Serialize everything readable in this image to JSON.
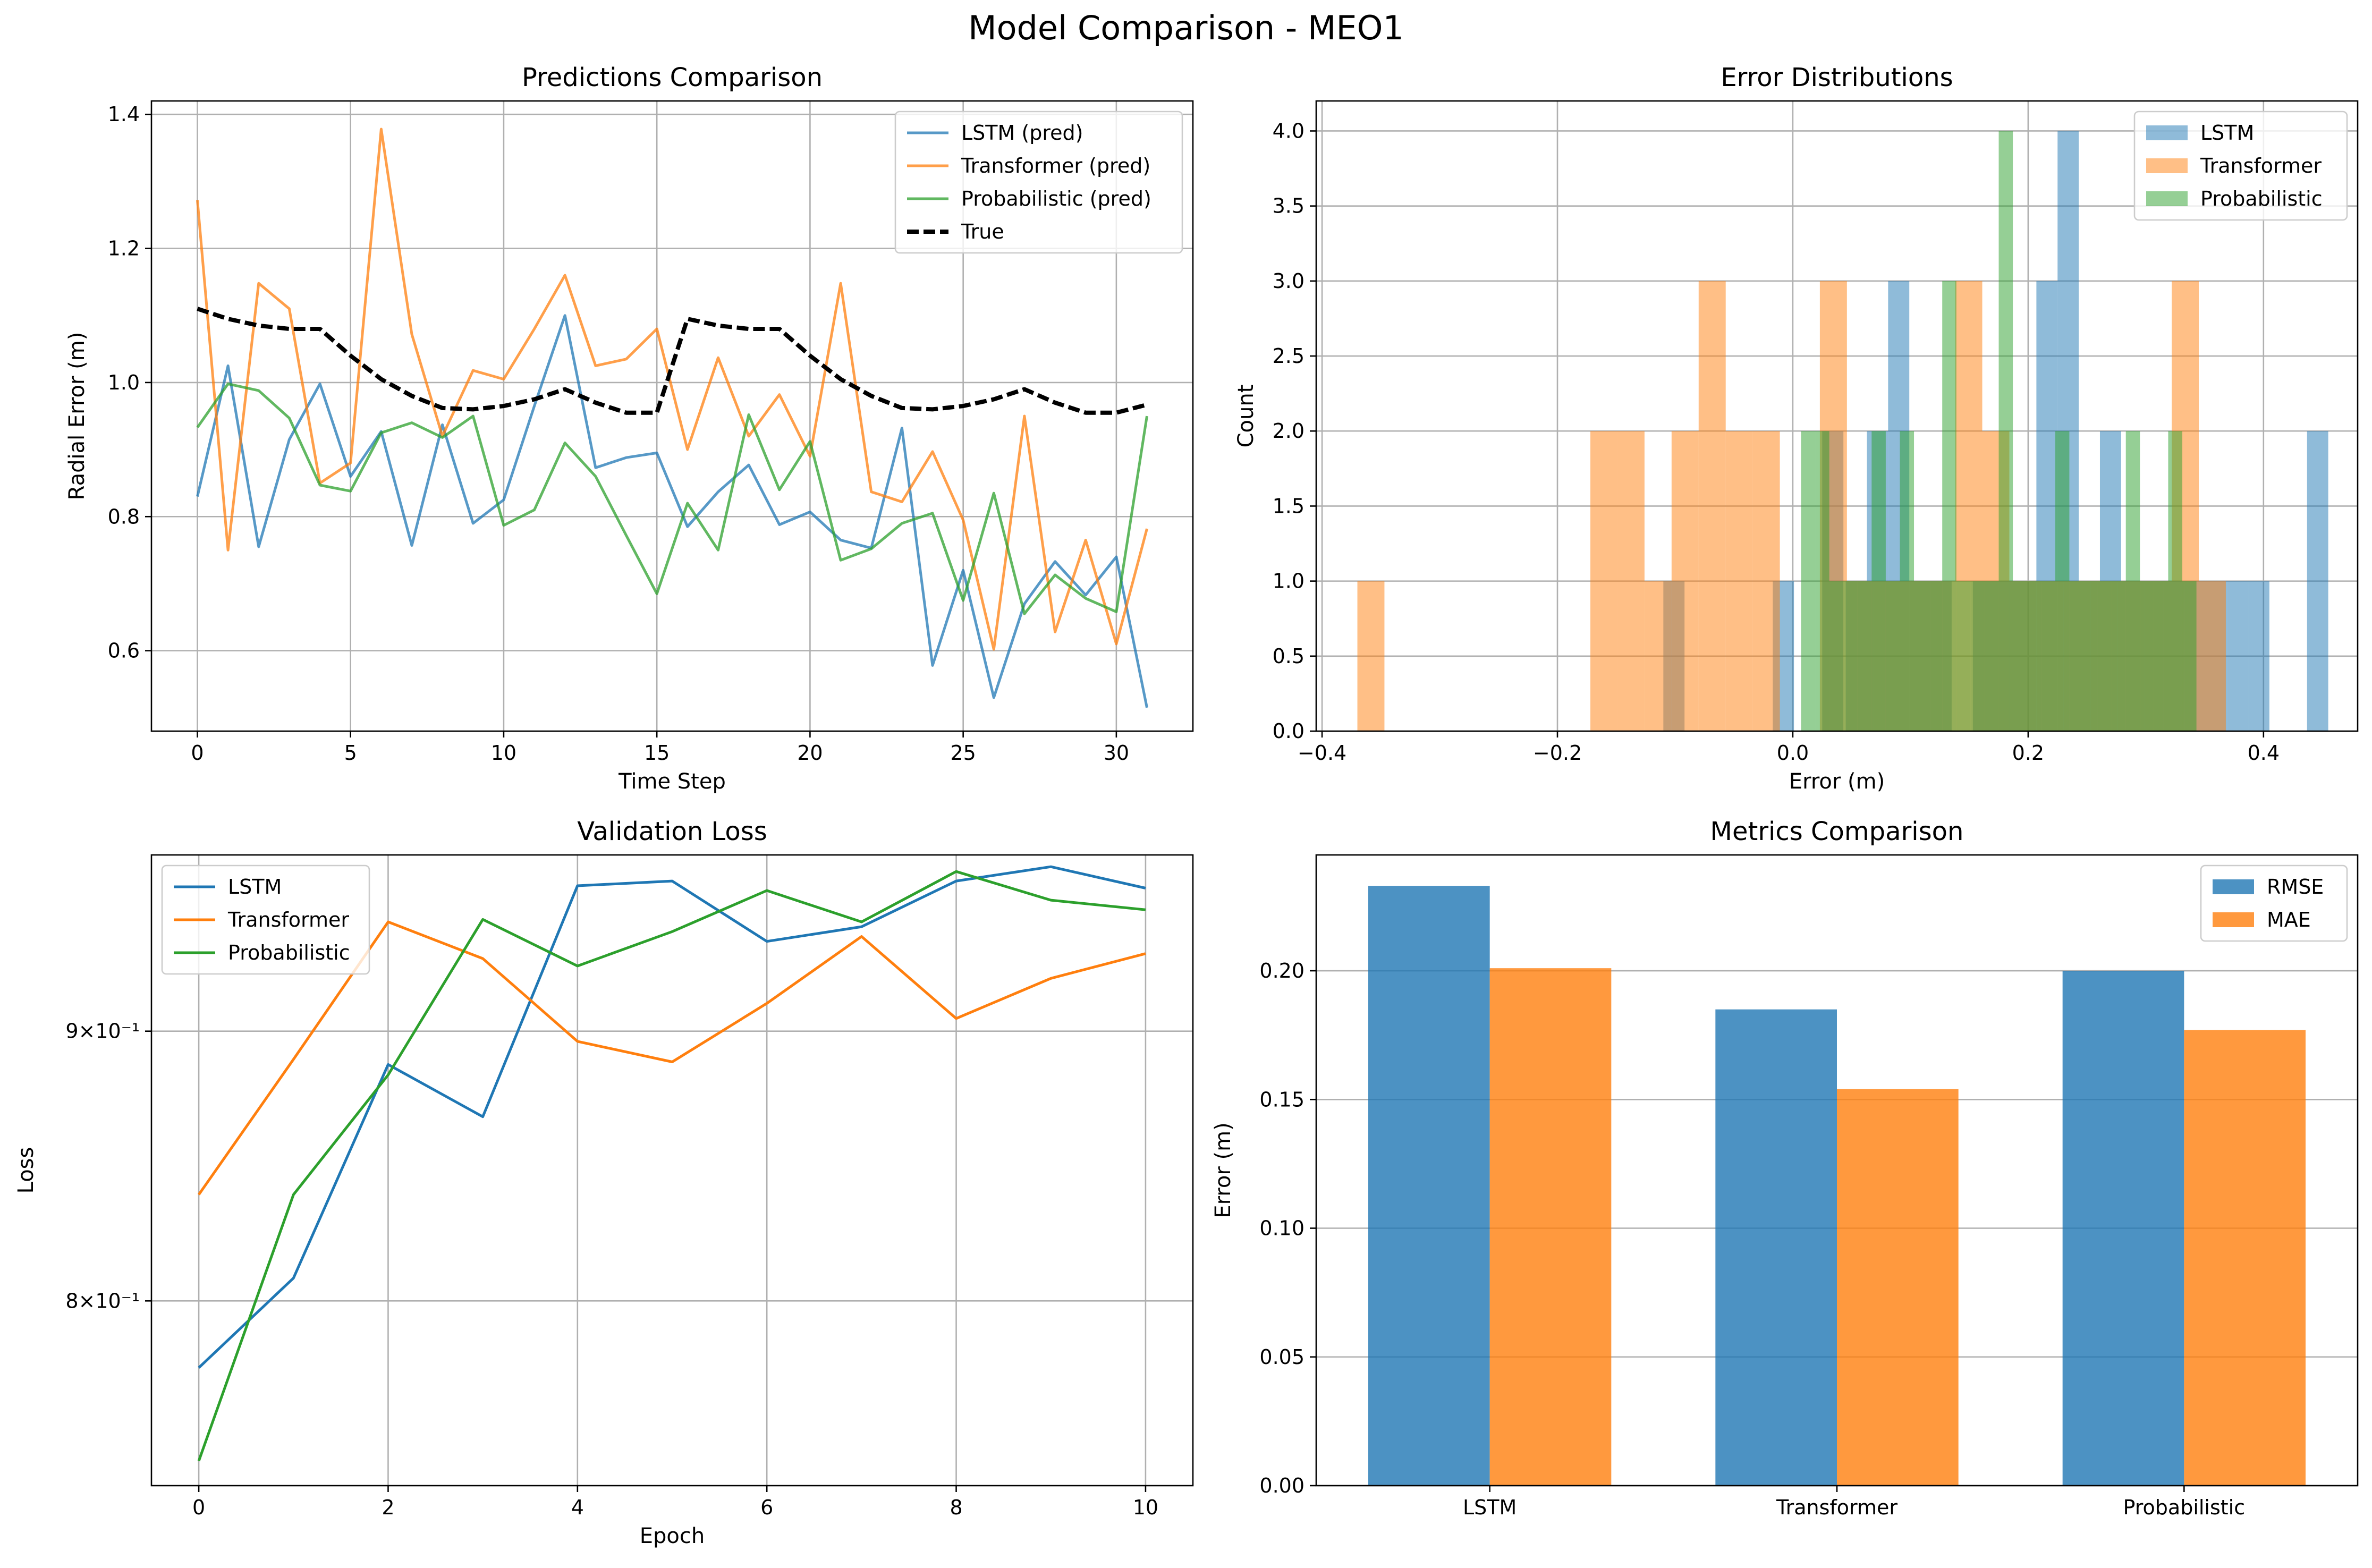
{
  "figure": {
    "title": "Model Comparison - MEO1"
  },
  "colors": {
    "lstm": "#1f77b4",
    "transformer": "#ff7f0e",
    "probabilistic": "#2ca02c",
    "true": "#000000"
  },
  "chart_data": [
    {
      "type": "line",
      "title": "Predictions Comparison",
      "xlabel": "Time Step",
      "ylabel": "Radial Error (m)",
      "xlim": [
        -1.5,
        32.5
      ],
      "ylim": [
        0.48,
        1.42
      ],
      "xticks": [
        0,
        5,
        10,
        15,
        20,
        25,
        30
      ],
      "yticks": [
        0.6,
        0.8,
        1.0,
        1.2,
        1.4
      ],
      "ytick_labels": [
        "0.6",
        "0.8",
        "1.0",
        "1.2",
        "1.4"
      ],
      "grid": true,
      "legend_position": "upper right",
      "x": [
        0,
        1,
        2,
        3,
        4,
        5,
        6,
        7,
        8,
        9,
        10,
        11,
        12,
        13,
        14,
        15,
        16,
        17,
        18,
        19,
        20,
        21,
        22,
        23,
        24,
        25,
        26,
        27,
        28,
        29,
        30,
        31
      ],
      "series": [
        {
          "name": "LSTM (pred)",
          "color": "#1f77b4",
          "style": "solid",
          "alpha": 0.75,
          "values": [
            0.83,
            1.025,
            0.755,
            0.915,
            0.998,
            0.86,
            0.927,
            0.757,
            0.937,
            0.79,
            0.825,
            0.965,
            1.1,
            0.873,
            0.888,
            0.895,
            0.785,
            0.837,
            0.877,
            0.788,
            0.807,
            0.765,
            0.753,
            0.932,
            0.578,
            0.72,
            0.53,
            0.67,
            0.733,
            0.683,
            0.74,
            0.515
          ]
        },
        {
          "name": "Transformer (pred)",
          "color": "#ff7f0e",
          "style": "solid",
          "alpha": 0.75,
          "values": [
            1.272,
            0.75,
            1.148,
            1.11,
            0.85,
            0.88,
            1.378,
            1.072,
            0.92,
            1.018,
            1.005,
            1.08,
            1.16,
            1.025,
            1.035,
            1.08,
            0.9,
            1.037,
            0.92,
            0.982,
            0.89,
            1.148,
            0.837,
            0.822,
            0.897,
            0.795,
            0.602,
            0.95,
            0.628,
            0.765,
            0.61,
            0.782
          ]
        },
        {
          "name": "Probabilistic (pred)",
          "color": "#2ca02c",
          "style": "solid",
          "alpha": 0.75,
          "values": [
            0.933,
            0.998,
            0.988,
            0.947,
            0.847,
            0.838,
            0.925,
            0.94,
            0.918,
            0.95,
            0.787,
            0.81,
            0.91,
            0.86,
            0.772,
            0.685,
            0.82,
            0.75,
            0.952,
            0.84,
            0.912,
            0.735,
            0.752,
            0.79,
            0.805,
            0.675,
            0.835,
            0.655,
            0.713,
            0.678,
            0.658,
            0.95
          ]
        },
        {
          "name": "True",
          "color": "#000000",
          "style": "dashed",
          "alpha": 1,
          "values": [
            1.11,
            1.095,
            1.085,
            1.08,
            1.08,
            1.04,
            1.005,
            0.98,
            0.962,
            0.96,
            0.965,
            0.975,
            0.99,
            0.97,
            0.955,
            0.955,
            1.095,
            1.085,
            1.08,
            1.08,
            1.04,
            1.005,
            0.98,
            0.962,
            0.96,
            0.965,
            0.975,
            0.99,
            0.97,
            0.955,
            0.955,
            0.967
          ]
        }
      ]
    },
    {
      "type": "histogram",
      "title": "Error Distributions",
      "xlabel": "Error (m)",
      "ylabel": "Count",
      "xlim": [
        -0.405,
        0.48
      ],
      "ylim": [
        0,
        4.2
      ],
      "xticks": [
        -0.4,
        -0.2,
        0.0,
        0.2,
        0.4
      ],
      "xtick_labels": [
        "−0.4",
        "−0.2",
        "0.0",
        "0.2",
        "0.4"
      ],
      "yticks": [
        0.0,
        0.5,
        1.0,
        1.5,
        2.0,
        2.5,
        3.0,
        3.5,
        4.0
      ],
      "ytick_labels": [
        "0.0",
        "0.5",
        "1.0",
        "1.5",
        "2.0",
        "2.5",
        "3.0",
        "3.5",
        "4.0"
      ],
      "grid": true,
      "legend_position": "upper right",
      "series": [
        {
          "name": "LSTM",
          "color": "#1f77b4",
          "alpha": 0.5,
          "bins": [
            [
              -0.11,
              -0.092,
              1
            ],
            [
              -0.017,
              0.001,
              1
            ],
            [
              0.025,
              0.043,
              2
            ],
            [
              0.045,
              0.063,
              1
            ],
            [
              0.063,
              0.081,
              2
            ],
            [
              0.081,
              0.099,
              3
            ],
            [
              0.099,
              0.117,
              1
            ],
            [
              0.117,
              0.135,
              1
            ],
            [
              0.153,
              0.171,
              1
            ],
            [
              0.171,
              0.189,
              1
            ],
            [
              0.189,
              0.207,
              1
            ],
            [
              0.207,
              0.225,
              3
            ],
            [
              0.225,
              0.243,
              4
            ],
            [
              0.243,
              0.261,
              1
            ],
            [
              0.261,
              0.279,
              2
            ],
            [
              0.279,
              0.297,
              1
            ],
            [
              0.297,
              0.315,
              1
            ],
            [
              0.315,
              0.333,
              1
            ],
            [
              0.333,
              0.351,
              1
            ],
            [
              0.351,
              0.369,
              1
            ],
            [
              0.369,
              0.387,
              1
            ],
            [
              0.387,
              0.405,
              1
            ],
            [
              0.437,
              0.455,
              2
            ]
          ]
        },
        {
          "name": "Transformer",
          "color": "#ff7f0e",
          "alpha": 0.5,
          "bins": [
            [
              -0.37,
              -0.347,
              1
            ],
            [
              -0.172,
              -0.149,
              2
            ],
            [
              -0.149,
              -0.126,
              2
            ],
            [
              -0.126,
              -0.103,
              1
            ],
            [
              -0.103,
              -0.08,
              2
            ],
            [
              -0.08,
              -0.057,
              3
            ],
            [
              -0.057,
              -0.034,
              2
            ],
            [
              -0.034,
              -0.011,
              2
            ],
            [
              0.023,
              0.046,
              3
            ],
            [
              0.046,
              0.069,
              1
            ],
            [
              0.069,
              0.092,
              1
            ],
            [
              0.092,
              0.115,
              1
            ],
            [
              0.115,
              0.138,
              1
            ],
            [
              0.138,
              0.161,
              3
            ],
            [
              0.161,
              0.184,
              2
            ],
            [
              0.184,
              0.207,
              1
            ],
            [
              0.207,
              0.23,
              1
            ],
            [
              0.23,
              0.253,
              1
            ],
            [
              0.253,
              0.276,
              1
            ],
            [
              0.276,
              0.299,
              1
            ],
            [
              0.299,
              0.322,
              1
            ],
            [
              0.322,
              0.345,
              3
            ],
            [
              0.345,
              0.368,
              1
            ]
          ]
        },
        {
          "name": "Probabilistic",
          "color": "#2ca02c",
          "alpha": 0.5,
          "bins": [
            [
              0.007,
              0.019,
              2
            ],
            [
              0.019,
              0.031,
              2
            ],
            [
              0.031,
              0.043,
              1
            ],
            [
              0.043,
              0.055,
              1
            ],
            [
              0.055,
              0.067,
              1
            ],
            [
              0.067,
              0.079,
              2
            ],
            [
              0.079,
              0.091,
              1
            ],
            [
              0.091,
              0.103,
              2
            ],
            [
              0.103,
              0.115,
              1
            ],
            [
              0.115,
              0.127,
              1
            ],
            [
              0.127,
              0.139,
              3
            ],
            [
              0.139,
              0.151,
              1
            ],
            [
              0.151,
              0.163,
              1
            ],
            [
              0.163,
              0.175,
              1
            ],
            [
              0.175,
              0.187,
              4
            ],
            [
              0.187,
              0.199,
              1
            ],
            [
              0.199,
              0.211,
              1
            ],
            [
              0.211,
              0.223,
              1
            ],
            [
              0.223,
              0.235,
              2
            ],
            [
              0.235,
              0.247,
              1
            ],
            [
              0.247,
              0.259,
              1
            ],
            [
              0.259,
              0.271,
              1
            ],
            [
              0.271,
              0.283,
              1
            ],
            [
              0.283,
              0.295,
              2
            ],
            [
              0.295,
              0.307,
              1
            ],
            [
              0.307,
              0.319,
              1
            ],
            [
              0.319,
              0.331,
              2
            ],
            [
              0.331,
              0.343,
              1
            ]
          ]
        }
      ]
    },
    {
      "type": "line",
      "title": "Validation Loss",
      "xlabel": "Epoch",
      "ylabel": "Loss",
      "yscale": "log",
      "xlim": [
        -0.5,
        10.5
      ],
      "ylim": [
        0.738,
        0.972
      ],
      "xticks": [
        0,
        2,
        4,
        6,
        8,
        10
      ],
      "yticks": [
        0.8,
        0.9
      ],
      "ytick_labels": [
        "8×10⁻¹",
        "9×10⁻¹"
      ],
      "grid": true,
      "legend_position": "upper left",
      "x": [
        0,
        1,
        2,
        3,
        4,
        5,
        6,
        7,
        8,
        9,
        10
      ],
      "series": [
        {
          "name": "LSTM",
          "color": "#1f77b4",
          "alpha": 1,
          "values": [
            0.777,
            0.808,
            0.887,
            0.867,
            0.959,
            0.961,
            0.936,
            0.942,
            0.961,
            0.967,
            0.958
          ]
        },
        {
          "name": "Transformer",
          "color": "#ff7f0e",
          "alpha": 1,
          "values": [
            0.838,
            0.889,
            0.944,
            0.929,
            0.896,
            0.888,
            0.911,
            0.938,
            0.905,
            0.921,
            0.931
          ]
        },
        {
          "name": "Probabilistic",
          "color": "#2ca02c",
          "alpha": 1,
          "values": [
            0.746,
            0.838,
            0.883,
            0.945,
            0.926,
            0.94,
            0.957,
            0.944,
            0.965,
            0.953,
            0.949
          ]
        }
      ]
    },
    {
      "type": "bar",
      "title": "Metrics Comparison",
      "xlabel": "",
      "ylabel": "Error (m)",
      "categories": [
        "LSTM",
        "Transformer",
        "Probabilistic"
      ],
      "ylim": [
        0,
        0.245
      ],
      "yticks": [
        0.0,
        0.05,
        0.1,
        0.15,
        0.2
      ],
      "ytick_labels": [
        "0.00",
        "0.05",
        "0.10",
        "0.15",
        "0.20"
      ],
      "grid": true,
      "legend_position": "upper right",
      "series": [
        {
          "name": "RMSE",
          "color": "#1f77b4",
          "alpha": 0.8,
          "values": [
            0.233,
            0.185,
            0.2
          ]
        },
        {
          "name": "MAE",
          "color": "#ff7f0e",
          "alpha": 0.8,
          "values": [
            0.201,
            0.154,
            0.177
          ]
        }
      ]
    }
  ]
}
